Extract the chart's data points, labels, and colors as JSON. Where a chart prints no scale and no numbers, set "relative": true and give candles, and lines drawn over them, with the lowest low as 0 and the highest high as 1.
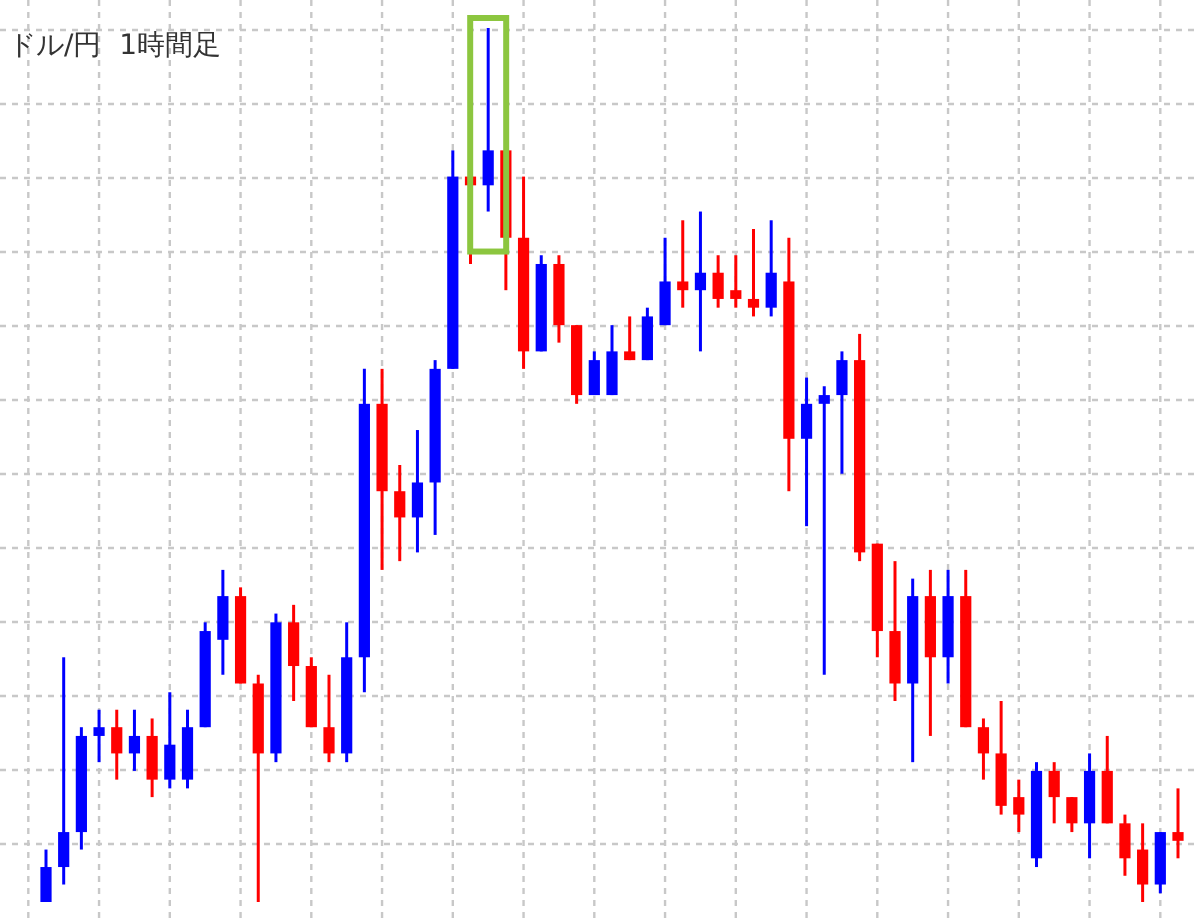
{
  "chart_data": {
    "type": "candlestick",
    "title": "ドル/円  1時間足",
    "relative": true,
    "grid": true,
    "categories": [
      null,
      null,
      null,
      null,
      null,
      null,
      null,
      null,
      null,
      null,
      null,
      null,
      null,
      null,
      null,
      null,
      null,
      null,
      null,
      null,
      null,
      null,
      null,
      null,
      null,
      null,
      null,
      null,
      null,
      null,
      null,
      null,
      null,
      null,
      null,
      null,
      null,
      null,
      null,
      null,
      null,
      null,
      null,
      null,
      null,
      null,
      null,
      null,
      null,
      null,
      null,
      null,
      null,
      null,
      null,
      null,
      null,
      null,
      null,
      null,
      null,
      null,
      null,
      null,
      null
    ],
    "ohlc": [
      [
        0,
        0.06,
        0,
        0.04
      ],
      [
        0.04,
        0.28,
        0.02,
        0.08
      ],
      [
        0.08,
        0.2,
        0.06,
        0.19
      ],
      [
        0.19,
        0.22,
        0.16,
        0.2
      ],
      [
        0.2,
        0.22,
        0.14,
        0.17
      ],
      [
        0.17,
        0.22,
        0.15,
        0.19
      ],
      [
        0.19,
        0.21,
        0.12,
        0.14
      ],
      [
        0.14,
        0.24,
        0.13,
        0.18
      ],
      [
        0.14,
        0.22,
        0.13,
        0.2
      ],
      [
        0.2,
        0.32,
        0.2,
        0.31
      ],
      [
        0.3,
        0.38,
        0.26,
        0.35
      ],
      [
        0.35,
        0.36,
        0.25,
        0.25
      ],
      [
        0.25,
        0.26,
        0,
        0.17
      ],
      [
        0.17,
        0.33,
        0.16,
        0.32
      ],
      [
        0.32,
        0.34,
        0.23,
        0.27
      ],
      [
        0.27,
        0.28,
        0.2,
        0.2
      ],
      [
        0.2,
        0.26,
        0.16,
        0.17
      ],
      [
        0.17,
        0.32,
        0.16,
        0.28
      ],
      [
        0.28,
        0.61,
        0.24,
        0.57
      ],
      [
        0.57,
        0.61,
        0.38,
        0.47
      ],
      [
        0.47,
        0.5,
        0.39,
        0.44
      ],
      [
        0.44,
        0.54,
        0.4,
        0.48
      ],
      [
        0.48,
        0.62,
        0.42,
        0.61
      ],
      [
        0.61,
        0.86,
        0.61,
        0.83
      ],
      [
        0.83,
        0.83,
        0.73,
        0.82
      ],
      [
        0.82,
        1,
        0.79,
        0.86
      ],
      [
        0.86,
        0.86,
        0.7,
        0.76
      ],
      [
        0.76,
        0.83,
        0.61,
        0.63
      ],
      [
        0.63,
        0.74,
        0.63,
        0.73
      ],
      [
        0.73,
        0.74,
        0.64,
        0.66
      ],
      [
        0.66,
        0.66,
        0.57,
        0.58
      ],
      [
        0.58,
        0.63,
        0.58,
        0.62
      ],
      [
        0.58,
        0.66,
        0.58,
        0.63
      ],
      [
        0.63,
        0.67,
        0.62,
        0.62
      ],
      [
        0.62,
        0.68,
        0.62,
        0.67
      ],
      [
        0.66,
        0.76,
        0.66,
        0.71
      ],
      [
        0.71,
        0.78,
        0.68,
        0.7
      ],
      [
        0.7,
        0.79,
        0.63,
        0.72
      ],
      [
        0.72,
        0.74,
        0.68,
        0.69
      ],
      [
        0.7,
        0.74,
        0.68,
        0.69
      ],
      [
        0.69,
        0.77,
        0.67,
        0.68
      ],
      [
        0.68,
        0.78,
        0.67,
        0.72
      ],
      [
        0.71,
        0.76,
        0.47,
        0.53
      ],
      [
        0.53,
        0.6,
        0.43,
        0.57
      ],
      [
        0.57,
        0.59,
        0.26,
        0.58
      ],
      [
        0.58,
        0.63,
        0.49,
        0.62
      ],
      [
        0.62,
        0.65,
        0.39,
        0.4
      ],
      [
        0.41,
        0.41,
        0.28,
        0.31
      ],
      [
        0.31,
        0.39,
        0.23,
        0.25
      ],
      [
        0.25,
        0.37,
        0.16,
        0.35
      ],
      [
        0.35,
        0.38,
        0.19,
        0.28
      ],
      [
        0.28,
        0.38,
        0.25,
        0.35
      ],
      [
        0.35,
        0.38,
        0.2,
        0.2
      ],
      [
        0.2,
        0.21,
        0.14,
        0.17
      ],
      [
        0.17,
        0.23,
        0.1,
        0.11
      ],
      [
        0.12,
        0.14,
        0.08,
        0.1
      ],
      [
        0.05,
        0.16,
        0.04,
        0.15
      ],
      [
        0.15,
        0.16,
        0.09,
        0.12
      ],
      [
        0.12,
        0.12,
        0.08,
        0.09
      ],
      [
        0.09,
        0.17,
        0.05,
        0.15
      ],
      [
        0.15,
        0.19,
        0.09,
        0.09
      ],
      [
        0.09,
        0.1,
        0.03,
        0.05
      ],
      [
        0.06,
        0.09,
        0,
        0.02
      ],
      [
        0.02,
        0.08,
        0.01,
        0.08
      ],
      [
        0.08,
        0.13,
        0.05,
        0.07
      ]
    ],
    "colors": [
      "#0000ff",
      "#0000ff",
      "#0000ff",
      "#0000ff",
      "#ff0000",
      "#0000ff",
      "#ff0000",
      "#0000ff",
      "#0000ff",
      "#0000ff",
      "#0000ff",
      "#ff0000",
      "#ff0000",
      "#0000ff",
      "#ff0000",
      "#ff0000",
      "#ff0000",
      "#0000ff",
      "#0000ff",
      "#ff0000",
      "#ff0000",
      "#0000ff",
      "#0000ff",
      "#0000ff",
      "#ff0000",
      "#0000ff",
      "#ff0000",
      "#ff0000",
      "#0000ff",
      "#ff0000",
      "#ff0000",
      "#0000ff",
      "#0000ff",
      "#ff0000",
      "#0000ff",
      "#0000ff",
      "#ff0000",
      "#0000ff",
      "#ff0000",
      "#ff0000",
      "#ff0000",
      "#0000ff",
      "#ff0000",
      "#0000ff",
      "#0000ff",
      "#0000ff",
      "#ff0000",
      "#ff0000",
      "#ff0000",
      "#0000ff",
      "#ff0000",
      "#0000ff",
      "#ff0000",
      "#ff0000",
      "#ff0000",
      "#ff0000",
      "#0000ff",
      "#ff0000",
      "#ff0000",
      "#0000ff",
      "#ff0000",
      "#ff0000",
      "#ff0000",
      "#0000ff",
      "#ff0000"
    ]
  }
}
